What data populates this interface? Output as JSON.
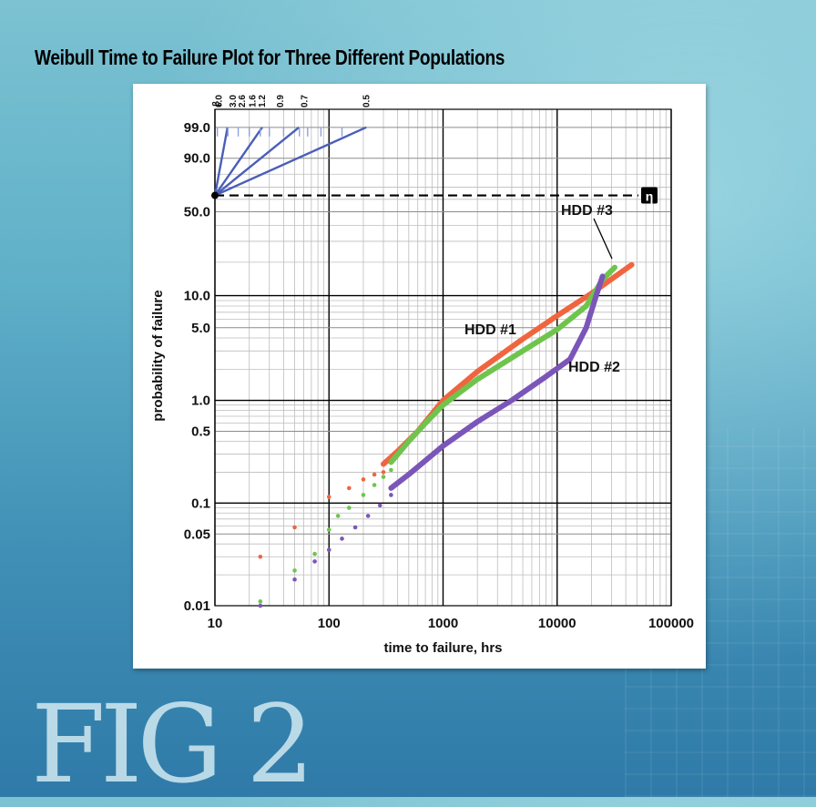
{
  "title": "Weibull Time to Failure Plot for Three Different Populations",
  "figure_label": "FIG 2",
  "chart_data": {
    "type": "scatter",
    "title": "Weibull Time to Failure Plot for Three Different Populations",
    "xlabel": "time to failure, hrs",
    "ylabel": "probability of failure",
    "xscale": "log",
    "yscale": "weibull",
    "xlim": [
      10,
      100000
    ],
    "ylim": [
      0.01,
      99.9
    ],
    "x_ticks": [
      "10",
      "100",
      "1000",
      "10000",
      "100000"
    ],
    "y_ticks": [
      "0.01",
      "0.05",
      "0.1",
      "0.5",
      "1.0",
      "5.0",
      "10.0",
      "50.0",
      "90.0",
      "99.0"
    ],
    "grid": true,
    "eta_label": "η",
    "eta_y": 63.2,
    "beta_label": "β",
    "beta_values": [
      "6.0",
      "3.0",
      "2.6",
      "1.6",
      "1.2",
      "0.9",
      "0.7",
      "0.5"
    ],
    "beta_lines": [
      6.0,
      1.6,
      0.9,
      0.5
    ],
    "series": [
      {
        "name": "HDD #1",
        "color": "#f0653f",
        "points": [
          [
            25,
            0.03
          ],
          [
            50,
            0.058
          ],
          [
            100,
            0.115
          ],
          [
            150,
            0.14
          ],
          [
            200,
            0.17
          ],
          [
            250,
            0.19
          ],
          [
            300,
            0.2
          ]
        ],
        "curve": [
          [
            300,
            0.24
          ],
          [
            400,
            0.32
          ],
          [
            600,
            0.5
          ],
          [
            1000,
            1.0
          ],
          [
            2000,
            1.9
          ],
          [
            5000,
            3.9
          ],
          [
            10000,
            6.5
          ],
          [
            20000,
            10.5
          ],
          [
            45000,
            19
          ]
        ]
      },
      {
        "name": "HDD #3",
        "color": "#6fc44e",
        "points": [
          [
            25,
            0.011
          ],
          [
            50,
            0.022
          ],
          [
            75,
            0.032
          ],
          [
            100,
            0.055
          ],
          [
            120,
            0.075
          ],
          [
            150,
            0.09
          ],
          [
            200,
            0.12
          ],
          [
            250,
            0.15
          ],
          [
            300,
            0.18
          ],
          [
            350,
            0.21
          ]
        ],
        "curve": [
          [
            350,
            0.25
          ],
          [
            500,
            0.4
          ],
          [
            700,
            0.6
          ],
          [
            1000,
            0.9
          ],
          [
            2000,
            1.6
          ],
          [
            5000,
            3.0
          ],
          [
            10000,
            4.8
          ],
          [
            18000,
            8.0
          ],
          [
            25000,
            14
          ],
          [
            32000,
            18
          ]
        ]
      },
      {
        "name": "HDD #2",
        "color": "#7b55b8",
        "points": [
          [
            25,
            0.01
          ],
          [
            50,
            0.018
          ],
          [
            75,
            0.027
          ],
          [
            100,
            0.035
          ],
          [
            130,
            0.045
          ],
          [
            170,
            0.058
          ],
          [
            220,
            0.075
          ],
          [
            280,
            0.095
          ],
          [
            350,
            0.12
          ]
        ],
        "curve": [
          [
            350,
            0.14
          ],
          [
            500,
            0.19
          ],
          [
            1000,
            0.36
          ],
          [
            2000,
            0.62
          ],
          [
            4000,
            1.0
          ],
          [
            8000,
            1.7
          ],
          [
            13000,
            2.5
          ],
          [
            18000,
            5.0
          ],
          [
            22000,
            10
          ],
          [
            25000,
            15
          ]
        ]
      }
    ],
    "annotations": [
      "HDD #1",
      "HDD #2",
      "HDD #3"
    ]
  }
}
